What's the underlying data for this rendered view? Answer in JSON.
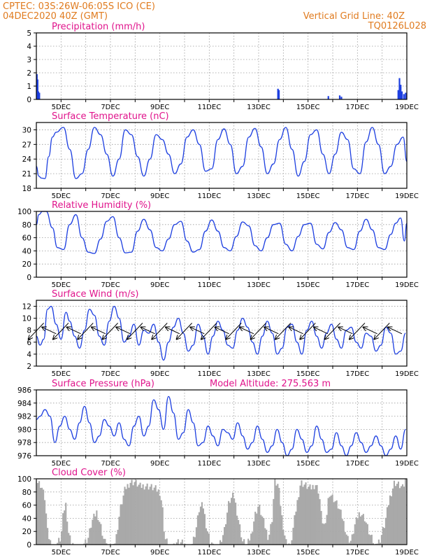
{
  "header": {
    "left_line1": "CPTEC:  03S:26W-06:05S  ICO (CE)",
    "left_line2": "04DEC2020 40Z (GMT)",
    "right_line1": "Vertical Grid Line: 40Z",
    "right_line2": "TQ0126L028"
  },
  "x_axis": {
    "range": [
      4.0,
      19.0
    ],
    "ticks": [
      {
        "x": 5,
        "label": "5DEC"
      },
      {
        "x": 7,
        "label": "7DEC"
      },
      {
        "x": 9,
        "label": "9DEC"
      },
      {
        "x": 11,
        "label": "11DEC"
      },
      {
        "x": 13,
        "label": "13DEC"
      },
      {
        "x": 15,
        "label": "15DEC"
      },
      {
        "x": 17,
        "label": "17DEC"
      },
      {
        "x": 19,
        "label": "19DEC"
      }
    ]
  },
  "colors": {
    "line": "#1d3fe0",
    "bar": "#1d3fe0",
    "cloud": "#a9a9a9",
    "title": "#e0148c",
    "header": "#e07b1f"
  },
  "chart_data": [
    {
      "id": "precip",
      "type": "bar",
      "title": "Precipitation (mm/h)",
      "ylim": [
        0,
        5
      ],
      "yticks": [
        0,
        1,
        2,
        3,
        4,
        5
      ],
      "x": [
        4.02,
        4.05,
        4.08,
        4.12,
        13.78,
        13.82,
        15.82,
        16.28,
        16.35,
        18.65,
        18.7,
        18.75,
        18.8,
        18.88,
        18.95
      ],
      "values": [
        1.9,
        1.5,
        0.6,
        0.5,
        0.8,
        0.7,
        0.25,
        0.3,
        0.2,
        0.7,
        1.6,
        1.1,
        0.6,
        0.4,
        0.5
      ]
    },
    {
      "id": "temp",
      "type": "line",
      "title": "Surface Temperature (nC)",
      "ylim": [
        18,
        31.5
      ],
      "yticks": [
        18,
        21,
        24,
        27,
        30
      ],
      "x": [
        4.0,
        4.1,
        4.2,
        4.35,
        4.5,
        4.65,
        4.8,
        5.1,
        5.35,
        5.6,
        5.85,
        6.1,
        6.35,
        6.6,
        6.85,
        7.1,
        7.35,
        7.6,
        7.85,
        8.1,
        8.35,
        8.6,
        8.85,
        9.1,
        9.35,
        9.6,
        9.85,
        10.1,
        10.35,
        10.6,
        10.85,
        11.1,
        11.35,
        11.6,
        11.85,
        12.1,
        12.35,
        12.6,
        12.85,
        13.1,
        13.35,
        13.6,
        13.85,
        14.1,
        14.35,
        14.6,
        14.85,
        15.1,
        15.35,
        15.6,
        15.85,
        16.1,
        16.35,
        16.6,
        16.85,
        17.1,
        17.35,
        17.6,
        17.85,
        18.1,
        18.35,
        18.6,
        18.85,
        19.0
      ],
      "values": [
        22.5,
        20.5,
        20.1,
        20.0,
        24.5,
        28.5,
        29.5,
        30.5,
        26.0,
        20.0,
        21.0,
        26.0,
        30.5,
        29.0,
        25.0,
        20.5,
        24.0,
        30.0,
        29.0,
        24.5,
        20.5,
        24.0,
        29.0,
        28.0,
        25.0,
        21.0,
        23.0,
        28.5,
        30.0,
        27.0,
        21.5,
        22.0,
        28.0,
        30.2,
        27.0,
        21.0,
        22.5,
        28.5,
        30.3,
        26.5,
        21.0,
        23.0,
        28.0,
        30.5,
        26.0,
        20.5,
        23.5,
        29.0,
        30.0,
        25.0,
        21.0,
        25.0,
        29.5,
        28.0,
        22.0,
        21.0,
        27.5,
        30.5,
        27.0,
        21.0,
        22.5,
        27.0,
        28.5,
        23.5
      ]
    },
    {
      "id": "rh",
      "type": "line",
      "title": "Relative Humidity (%)",
      "ylim": [
        0,
        100
      ],
      "yticks": [
        0,
        20,
        40,
        60,
        80,
        100
      ],
      "x": [
        4.0,
        4.1,
        4.25,
        4.4,
        4.65,
        4.85,
        5.1,
        5.35,
        5.6,
        5.85,
        6.1,
        6.35,
        6.6,
        6.85,
        7.1,
        7.35,
        7.6,
        7.85,
        8.1,
        8.35,
        8.6,
        8.85,
        9.1,
        9.35,
        9.6,
        9.85,
        10.1,
        10.35,
        10.6,
        10.85,
        11.1,
        11.35,
        11.6,
        11.85,
        12.1,
        12.35,
        12.6,
        12.85,
        13.1,
        13.35,
        13.6,
        13.85,
        14.1,
        14.35,
        14.6,
        14.85,
        15.1,
        15.35,
        15.6,
        15.85,
        16.1,
        16.35,
        16.6,
        16.85,
        17.1,
        17.35,
        17.6,
        17.85,
        18.1,
        18.35,
        18.55,
        18.75,
        18.9,
        19.0
      ],
      "values": [
        80,
        95,
        100,
        100,
        75,
        45,
        42,
        80,
        95,
        60,
        38,
        36,
        58,
        85,
        92,
        60,
        37,
        38,
        70,
        88,
        72,
        45,
        40,
        58,
        80,
        85,
        55,
        38,
        42,
        70,
        87,
        70,
        45,
        40,
        62,
        84,
        78,
        48,
        40,
        60,
        80,
        82,
        50,
        40,
        62,
        80,
        82,
        50,
        43,
        68,
        83,
        72,
        45,
        42,
        70,
        88,
        72,
        45,
        42,
        65,
        82,
        90,
        55,
        82
      ]
    },
    {
      "id": "wind",
      "type": "line",
      "title": "Surface Wind (m/s)",
      "ylim": [
        2,
        13
      ],
      "yticks": [
        2,
        4,
        6,
        8,
        10,
        12
      ],
      "x": [
        4.0,
        4.15,
        4.3,
        4.45,
        4.6,
        4.8,
        5.0,
        5.2,
        5.35,
        5.55,
        5.75,
        5.95,
        6.15,
        6.35,
        6.55,
        6.75,
        6.95,
        7.15,
        7.35,
        7.55,
        7.75,
        7.95,
        8.15,
        8.35,
        8.55,
        8.75,
        8.95,
        9.15,
        9.35,
        9.55,
        9.75,
        9.95,
        10.15,
        10.35,
        10.55,
        10.75,
        10.95,
        11.15,
        11.35,
        11.55,
        11.75,
        11.95,
        12.15,
        12.35,
        12.55,
        12.75,
        12.95,
        13.15,
        13.35,
        13.55,
        13.75,
        13.95,
        14.15,
        14.35,
        14.55,
        14.75,
        14.95,
        15.15,
        15.35,
        15.55,
        15.75,
        15.95,
        16.15,
        16.35,
        16.55,
        16.75,
        16.95,
        17.15,
        17.35,
        17.55,
        17.75,
        17.95,
        18.15,
        18.35,
        18.55,
        18.75,
        18.95
      ],
      "values": [
        7.0,
        5.5,
        6.5,
        11.5,
        12.0,
        9.0,
        6.5,
        11.0,
        9.5,
        7.0,
        5.0,
        8.0,
        11.5,
        10.5,
        7.0,
        5.5,
        9.5,
        12.0,
        10.0,
        6.0,
        7.0,
        9.0,
        5.5,
        8.0,
        7.5,
        9.0,
        6.0,
        3.0,
        6.0,
        8.5,
        10.0,
        7.5,
        4.5,
        5.5,
        9.0,
        7.0,
        4.0,
        7.0,
        9.5,
        8.0,
        5.5,
        5.0,
        8.0,
        10.0,
        8.5,
        6.0,
        4.0,
        7.0,
        9.5,
        7.5,
        4.0,
        5.0,
        8.5,
        9.0,
        6.0,
        4.0,
        8.0,
        9.5,
        7.0,
        5.0,
        7.5,
        9.0,
        6.5,
        5.0,
        8.0,
        8.5,
        6.0,
        5.0,
        7.5,
        7.0,
        4.5,
        5.5,
        8.5,
        7.5,
        4.0,
        4.5,
        7.5
      ]
    },
    {
      "id": "pres",
      "type": "line",
      "title": "Surface Pressure (hPa)",
      "annotation": "Model Altitude: 275.563 m",
      "ylim": [
        976,
        986
      ],
      "yticks": [
        976,
        978,
        980,
        982,
        984,
        986
      ],
      "x": [
        4.0,
        4.15,
        4.35,
        4.55,
        4.75,
        4.95,
        5.15,
        5.35,
        5.55,
        5.75,
        5.95,
        6.15,
        6.35,
        6.55,
        6.75,
        6.95,
        7.15,
        7.35,
        7.55,
        7.75,
        7.95,
        8.15,
        8.35,
        8.55,
        8.75,
        8.95,
        9.15,
        9.35,
        9.55,
        9.75,
        9.95,
        10.15,
        10.35,
        10.55,
        10.75,
        10.95,
        11.15,
        11.35,
        11.55,
        11.75,
        11.95,
        12.15,
        12.35,
        12.55,
        12.75,
        12.95,
        13.15,
        13.35,
        13.55,
        13.75,
        13.95,
        14.15,
        14.35,
        14.55,
        14.75,
        14.95,
        15.15,
        15.35,
        15.55,
        15.75,
        15.95,
        16.15,
        16.35,
        16.55,
        16.75,
        16.95,
        17.15,
        17.35,
        17.55,
        17.75,
        17.95,
        18.15,
        18.35,
        18.55,
        18.75,
        18.95
      ],
      "values": [
        981.5,
        982.0,
        983.0,
        982.0,
        978.0,
        980.5,
        982.0,
        980.0,
        978.5,
        981.0,
        983.5,
        981.0,
        978.0,
        979.0,
        981.5,
        980.5,
        979.0,
        981.0,
        978.5,
        977.5,
        980.5,
        982.0,
        979.0,
        980.5,
        984.5,
        983.0,
        980.0,
        985.0,
        982.5,
        978.5,
        979.5,
        983.0,
        981.0,
        977.5,
        978.0,
        980.5,
        979.0,
        977.5,
        980.0,
        979.5,
        978.5,
        981.0,
        979.0,
        977.0,
        978.0,
        980.5,
        978.5,
        976.5,
        977.5,
        980.0,
        978.0,
        976.0,
        977.0,
        980.0,
        978.5,
        976.5,
        977.5,
        980.5,
        978.5,
        976.5,
        977.0,
        979.5,
        977.5,
        976.0,
        977.5,
        979.5,
        978.0,
        976.5,
        977.5,
        979.0,
        977.5,
        976.0,
        977.0,
        979.0,
        977.0,
        980.0
      ]
    },
    {
      "id": "cloud",
      "type": "area",
      "title": "Cloud Cover (%)",
      "ylim": [
        0,
        100
      ],
      "yticks": [
        0,
        20,
        40,
        60,
        80,
        100
      ],
      "x": [
        4.0,
        4.05,
        4.2,
        4.35,
        4.45,
        4.55,
        4.7,
        4.8,
        5.0,
        5.1,
        5.2,
        5.3,
        5.4,
        5.55,
        5.7,
        5.9,
        6.1,
        6.25,
        6.45,
        6.6,
        6.75,
        6.9,
        7.05,
        7.2,
        7.4,
        7.6,
        7.8,
        8.0,
        8.2,
        8.4,
        8.6,
        8.8,
        9.0,
        9.1,
        9.2,
        9.35,
        9.5,
        9.7,
        9.9,
        10.1,
        10.3,
        10.45,
        10.6,
        10.75,
        10.9,
        11.05,
        11.2,
        11.4,
        11.6,
        11.8,
        12.0,
        12.2,
        12.35,
        12.55,
        12.7,
        12.85,
        13.0,
        13.2,
        13.4,
        13.55,
        13.65,
        13.8,
        13.95,
        14.1,
        14.3,
        14.5,
        14.7,
        14.9,
        15.1,
        15.3,
        15.45,
        15.55,
        15.7,
        15.85,
        16.0,
        16.2,
        16.4,
        16.6,
        16.75,
        16.9,
        17.1,
        17.3,
        17.5,
        17.7,
        17.9,
        18.1,
        18.3,
        18.5,
        18.7,
        18.85,
        18.95
      ],
      "values": [
        0,
        95,
        90,
        70,
        20,
        5,
        0,
        0,
        10,
        50,
        62,
        20,
        5,
        0,
        0,
        0,
        10,
        35,
        50,
        30,
        5,
        0,
        0,
        2,
        55,
        85,
        95,
        95,
        88,
        90,
        88,
        85,
        80,
        60,
        10,
        0,
        0,
        5,
        3,
        0,
        0,
        20,
        55,
        60,
        25,
        5,
        0,
        0,
        20,
        65,
        75,
        35,
        5,
        0,
        15,
        45,
        60,
        35,
        10,
        40,
        96,
        90,
        40,
        5,
        0,
        50,
        95,
        90,
        85,
        92,
        80,
        40,
        25,
        80,
        72,
        60,
        40,
        10,
        5,
        30,
        50,
        40,
        15,
        0,
        5,
        30,
        70,
        95,
        90,
        85,
        100
      ]
    }
  ],
  "wind_arrows_note": ""
}
